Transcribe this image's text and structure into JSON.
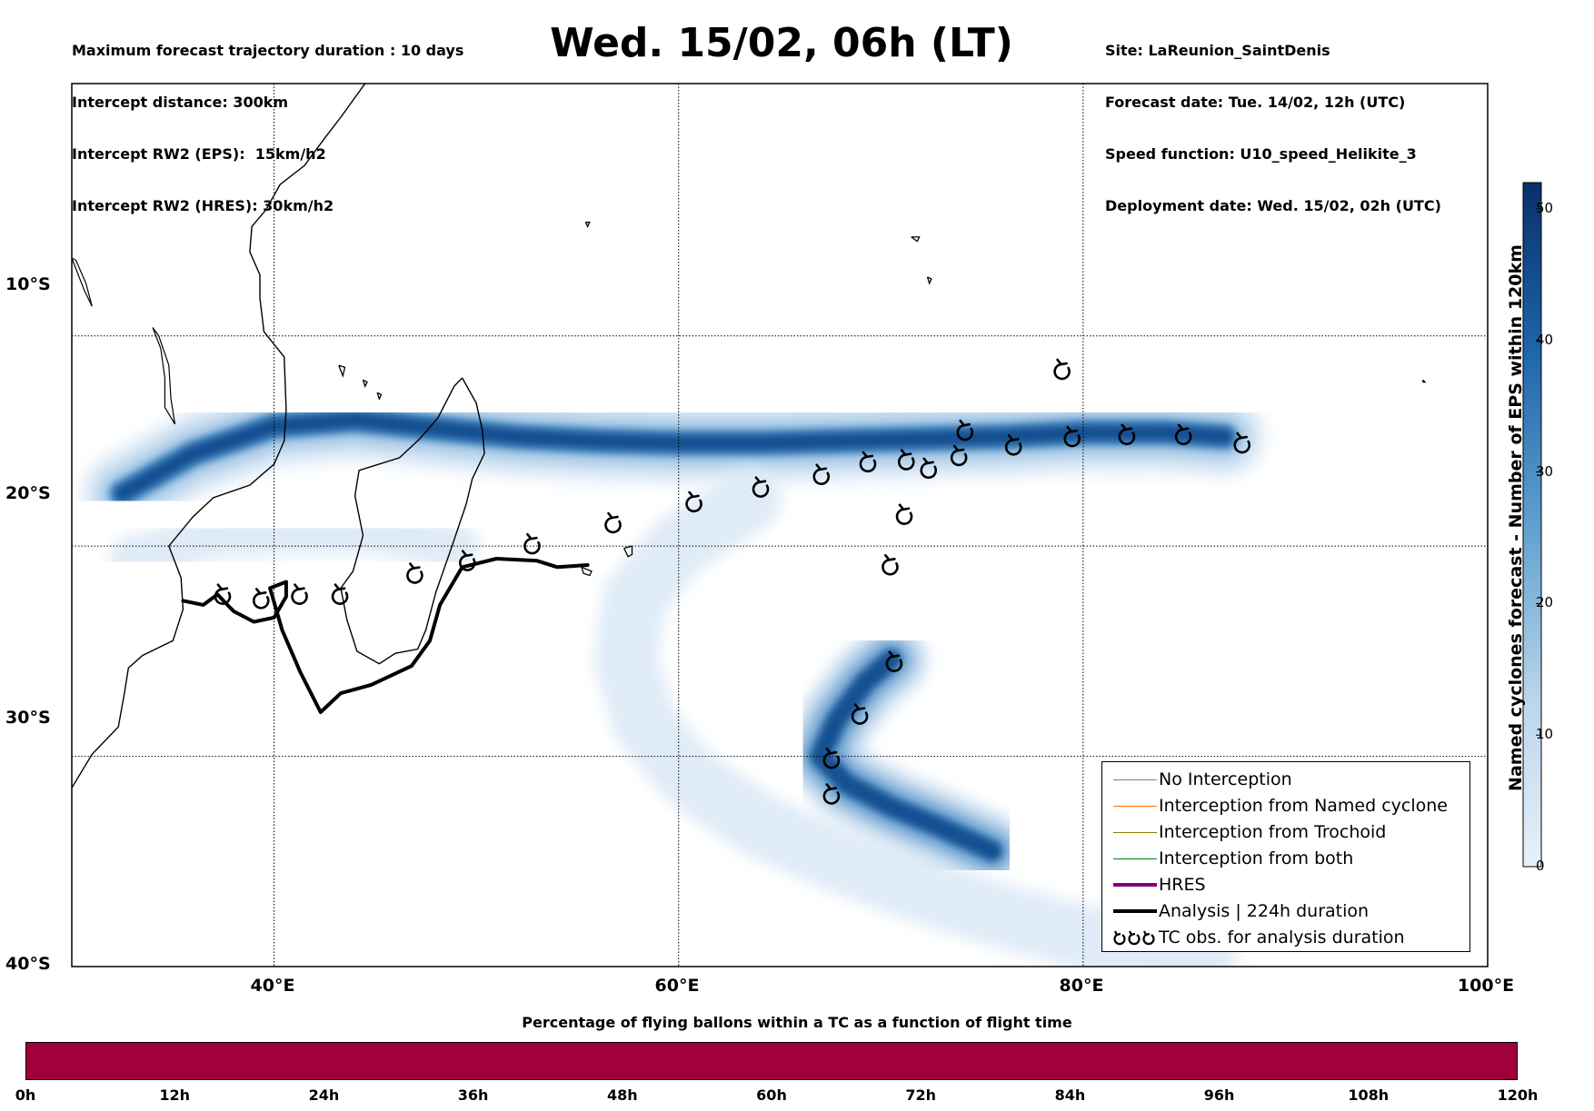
{
  "header_left": [
    "Maximum forecast trajectory duration : 10 days",
    "Intercept distance: 300km",
    "Intercept RW2 (EPS):  15km/h2",
    "Intercept RW2 (HRES): 30km/h2"
  ],
  "header_right": [
    "Site: LaReunion_SaintDenis",
    "Forecast date: Tue. 14/02, 12h (UTC)",
    "Speed function: U10_speed_Helikite_3",
    "Deployment date: Wed. 15/02, 02h (UTC)"
  ],
  "title": "Wed. 15/02, 06h (LT)",
  "map": {
    "lon_range": [
      30,
      100
    ],
    "lat_range": [
      -40,
      2
    ],
    "lat_ticks": [
      {
        "value": -10,
        "label": "10°S"
      },
      {
        "value": -20,
        "label": "20°S"
      },
      {
        "value": -30,
        "label": "30°S"
      },
      {
        "value": -40,
        "label": "40°S"
      }
    ],
    "lon_ticks": [
      {
        "value": 40,
        "label": "40°E"
      },
      {
        "value": 60,
        "label": "60°E"
      },
      {
        "value": 80,
        "label": "80°E"
      },
      {
        "value": 100,
        "label": "100°E"
      }
    ],
    "analysis_track": [
      [
        35.5,
        -22.6
      ],
      [
        36.5,
        -22.8
      ],
      [
        37.2,
        -22.3
      ],
      [
        38.0,
        -23.1
      ],
      [
        39.0,
        -23.6
      ],
      [
        40.0,
        -23.4
      ],
      [
        40.6,
        -22.4
      ],
      [
        40.6,
        -21.7
      ],
      [
        39.8,
        -22.0
      ],
      [
        40.4,
        -24.0
      ],
      [
        41.3,
        -26.0
      ],
      [
        42.3,
        -27.9
      ],
      [
        43.3,
        -27.0
      ],
      [
        44.8,
        -26.6
      ],
      [
        46.8,
        -25.7
      ],
      [
        47.7,
        -24.5
      ],
      [
        48.2,
        -22.8
      ],
      [
        49.3,
        -21.0
      ],
      [
        51.0,
        -20.6
      ],
      [
        53.0,
        -20.7
      ],
      [
        54.0,
        -21.0
      ],
      [
        55.5,
        -20.9
      ]
    ],
    "tc_obs_analysis": [
      [
        37.5,
        -22.4
      ],
      [
        39.4,
        -22.6
      ],
      [
        41.3,
        -22.4
      ],
      [
        43.3,
        -22.4
      ],
      [
        47.0,
        -21.4
      ],
      [
        49.6,
        -20.8
      ],
      [
        52.8,
        -20.0
      ],
      [
        56.8,
        -19.0
      ],
      [
        60.8,
        -18.0
      ],
      [
        64.1,
        -17.3
      ],
      [
        67.1,
        -16.7
      ],
      [
        69.4,
        -16.1
      ],
      [
        71.3,
        -16.0
      ],
      [
        72.4,
        -16.4
      ],
      [
        73.9,
        -15.8
      ],
      [
        74.2,
        -14.6
      ],
      [
        76.6,
        -15.3
      ],
      [
        79.5,
        -14.9
      ],
      [
        82.2,
        -14.8
      ],
      [
        85.0,
        -14.8
      ],
      [
        87.9,
        -15.2
      ],
      [
        79.0,
        -11.7
      ],
      [
        71.2,
        -18.6
      ],
      [
        70.5,
        -21.0
      ],
      [
        70.7,
        -25.6
      ],
      [
        69.0,
        -28.1
      ],
      [
        67.6,
        -30.2
      ],
      [
        67.6,
        -31.9
      ]
    ],
    "coast_africa": [
      [
        30.0,
        -31.5
      ],
      [
        31.0,
        -29.9
      ],
      [
        32.3,
        -28.6
      ],
      [
        32.6,
        -27.0
      ],
      [
        32.8,
        -25.8
      ],
      [
        33.5,
        -25.2
      ],
      [
        35.0,
        -24.5
      ],
      [
        35.5,
        -23.0
      ],
      [
        35.4,
        -21.5
      ],
      [
        34.8,
        -20.0
      ],
      [
        36.0,
        -18.6
      ],
      [
        37.0,
        -17.7
      ],
      [
        38.8,
        -17.1
      ],
      [
        40.0,
        -16.1
      ],
      [
        40.5,
        -15.0
      ],
      [
        40.6,
        -13.5
      ],
      [
        40.5,
        -11.0
      ],
      [
        39.5,
        -9.8
      ],
      [
        39.3,
        -8.2
      ],
      [
        39.3,
        -7.1
      ],
      [
        38.8,
        -6.0
      ],
      [
        38.9,
        -4.8
      ],
      [
        39.6,
        -4.0
      ],
      [
        40.3,
        -2.8
      ],
      [
        41.5,
        -1.9
      ],
      [
        42.5,
        -0.6
      ],
      [
        43.3,
        0.4
      ],
      [
        44.5,
        2.0
      ]
    ],
    "coast_madagascar": [
      [
        49.3,
        -12.0
      ],
      [
        50.0,
        -13.2
      ],
      [
        50.3,
        -14.5
      ],
      [
        50.4,
        -15.6
      ],
      [
        49.8,
        -16.8
      ],
      [
        49.5,
        -18.0
      ],
      [
        48.8,
        -20.0
      ],
      [
        48.0,
        -22.2
      ],
      [
        47.5,
        -24.0
      ],
      [
        47.1,
        -24.9
      ],
      [
        46.0,
        -25.1
      ],
      [
        45.2,
        -25.6
      ],
      [
        44.1,
        -25.0
      ],
      [
        43.6,
        -23.5
      ],
      [
        43.3,
        -22.0
      ],
      [
        43.9,
        -21.2
      ],
      [
        44.4,
        -19.5
      ],
      [
        44.0,
        -17.6
      ],
      [
        44.2,
        -16.4
      ],
      [
        46.2,
        -15.8
      ],
      [
        47.2,
        -14.9
      ],
      [
        48.1,
        -13.9
      ],
      [
        48.9,
        -12.4
      ],
      [
        49.3,
        -12.0
      ]
    ],
    "coast_lake_malawi": [
      [
        34.0,
        -9.6
      ],
      [
        34.4,
        -10.6
      ],
      [
        34.6,
        -12.0
      ],
      [
        34.6,
        -13.4
      ],
      [
        35.1,
        -14.2
      ],
      [
        34.9,
        -13.0
      ],
      [
        34.8,
        -11.4
      ],
      [
        34.3,
        -10.0
      ],
      [
        34.0,
        -9.6
      ]
    ],
    "coast_lake_tanganyika": [
      [
        30.0,
        -6.3
      ],
      [
        30.6,
        -7.8
      ],
      [
        31.0,
        -8.6
      ],
      [
        30.7,
        -7.5
      ],
      [
        30.2,
        -6.4
      ],
      [
        30.0,
        -6.3
      ]
    ],
    "coast_islands": [
      [
        [
          55.2,
          -21.0
        ],
        [
          55.7,
          -21.2
        ],
        [
          55.6,
          -21.4
        ],
        [
          55.3,
          -21.3
        ],
        [
          55.2,
          -21.0
        ]
      ],
      [
        [
          57.3,
          -20.1
        ],
        [
          57.7,
          -20.0
        ],
        [
          57.7,
          -20.4
        ],
        [
          57.5,
          -20.5
        ],
        [
          57.3,
          -20.1
        ]
      ],
      [
        [
          43.2,
          -11.4
        ],
        [
          43.5,
          -11.5
        ],
        [
          43.4,
          -11.9
        ],
        [
          43.2,
          -11.4
        ]
      ],
      [
        [
          44.4,
          -12.1
        ],
        [
          44.6,
          -12.2
        ],
        [
          44.5,
          -12.4
        ],
        [
          44.4,
          -12.1
        ]
      ],
      [
        [
          45.1,
          -12.7
        ],
        [
          45.3,
          -12.8
        ],
        [
          45.2,
          -13.0
        ],
        [
          45.1,
          -12.7
        ]
      ],
      [
        [
          72.3,
          -7.2
        ],
        [
          72.5,
          -7.3
        ],
        [
          72.4,
          -7.5
        ],
        [
          72.3,
          -7.2
        ]
      ],
      [
        [
          71.5,
          -5.3
        ],
        [
          71.9,
          -5.3
        ],
        [
          71.8,
          -5.5
        ],
        [
          71.5,
          -5.3
        ]
      ],
      [
        [
          55.4,
          -4.6
        ],
        [
          55.6,
          -4.6
        ],
        [
          55.5,
          -4.8
        ],
        [
          55.4,
          -4.6
        ]
      ],
      [
        [
          96.8,
          -12.1
        ],
        [
          96.9,
          -12.2
        ],
        [
          96.8,
          -12.2
        ],
        [
          96.8,
          -12.1
        ]
      ]
    ]
  },
  "colorbar": {
    "label": "Named cyclones forecast - Number of EPS within 120km",
    "min": 0,
    "max": 52,
    "ticks": [
      "0",
      "10",
      "20",
      "30",
      "40",
      "50"
    ]
  },
  "legend": {
    "items": [
      {
        "label": "No Interception",
        "color": "#808080",
        "width": 1
      },
      {
        "label": "Interception from Named cyclone",
        "color": "#ff6a00",
        "width": 1
      },
      {
        "label": "Interception from Trochoid",
        "color": "#8b7b00",
        "width": 1
      },
      {
        "label": "Interception from both",
        "color": "#008000",
        "width": 1
      },
      {
        "label": "HRES",
        "color": "#800080",
        "width": 4
      },
      {
        "label": "Analysis | 224h duration",
        "color": "#000000",
        "width": 4
      },
      {
        "label": "TC obs. for analysis duration",
        "color": "#000000",
        "symbol": "cyclone-icon"
      }
    ]
  },
  "flight_time": {
    "title": "Percentage of flying ballons within a TC as a function of flight time",
    "bar_color": "#a0003c",
    "labels": [
      "0h",
      "12h",
      "24h",
      "36h",
      "48h",
      "60h",
      "72h",
      "84h",
      "96h",
      "108h",
      "120h"
    ]
  },
  "density_bands": [
    {
      "path": [
        [
          32.5,
          -17.5
        ],
        [
          36,
          -15.6
        ],
        [
          40,
          -14.3
        ],
        [
          44,
          -14.0
        ],
        [
          48,
          -14.4
        ],
        [
          52,
          -14.8
        ],
        [
          56,
          -15.0
        ],
        [
          60,
          -15.1
        ],
        [
          64,
          -15.1
        ],
        [
          68,
          -15.0
        ],
        [
          72,
          -14.9
        ],
        [
          76,
          -14.8
        ],
        [
          80,
          -14.6
        ],
        [
          84,
          -14.6
        ],
        [
          87,
          -14.8
        ]
      ]
    },
    {
      "path": [
        [
          33,
          -20.6
        ],
        [
          37,
          -19.5
        ],
        [
          41,
          -19.3
        ],
        [
          45,
          -19.3
        ],
        [
          49,
          -20.0
        ]
      ]
    },
    {
      "path": [
        [
          63.5,
          -17.8
        ],
        [
          60,
          -20.0
        ],
        [
          57.8,
          -22.5
        ],
        [
          57.4,
          -25.5
        ],
        [
          58.3,
          -28.4
        ],
        [
          60.5,
          -31.0
        ],
        [
          64.0,
          -33.3
        ],
        [
          68,
          -35.0
        ],
        [
          72,
          -36.4
        ],
        [
          76,
          -37.6
        ],
        [
          80,
          -38.6
        ],
        [
          84,
          -39.3
        ],
        [
          86,
          -39.6
        ]
      ]
    },
    {
      "path": [
        [
          70.5,
          -25.4
        ],
        [
          69.2,
          -26.5
        ],
        [
          67.8,
          -28.3
        ],
        [
          67.0,
          -30.0
        ],
        [
          68.3,
          -31.3
        ],
        [
          70.5,
          -32.4
        ],
        [
          73.0,
          -33.4
        ],
        [
          75.5,
          -34.5
        ]
      ]
    }
  ]
}
